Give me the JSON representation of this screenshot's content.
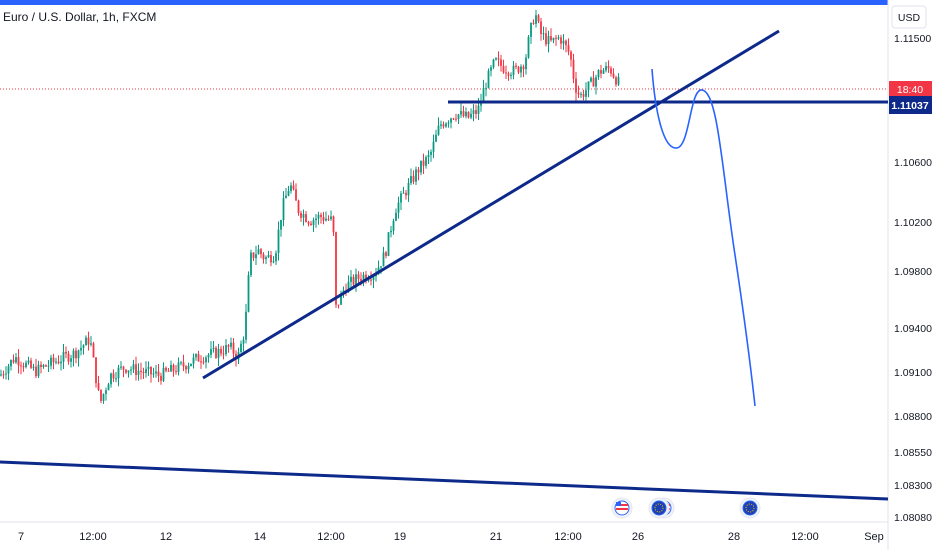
{
  "header": {
    "symbol_title": "Euro / U.S. Dollar, 1h, FXCM",
    "currency_badge": "USD"
  },
  "price_axis": {
    "ticks": [
      "1.11500",
      "1.10600",
      "1.10200",
      "1.09800",
      "1.09400",
      "1.09100",
      "1.08800",
      "1.08550",
      "1.08300",
      "1.08080"
    ],
    "countdown_label": "18:40",
    "current_price_label": "1.11037"
  },
  "time_axis": {
    "ticks": [
      "7",
      "12:00",
      "12",
      "14",
      "12:00",
      "19",
      "21",
      "12:00",
      "26",
      "28",
      "12:00",
      "Sep"
    ]
  },
  "colors": {
    "up_candle": "#089981",
    "down_candle": "#f23645",
    "trendline": "#0d2a8a",
    "price_tag": "#0d2a8a",
    "countdown_tag": "#f23645",
    "projection": "#2962ff",
    "top_border": "#2962ff"
  },
  "chart_data": {
    "type": "candlestick",
    "title": "Euro / U.S. Dollar, 1h, FXCM",
    "price_unit": "USD",
    "ylim": [
      1.0808,
      1.1175
    ],
    "last_price": 1.11037,
    "horizontal_level": 1.11037,
    "path_points": [
      [
        0,
        1.0912
      ],
      [
        15,
        1.0925
      ],
      [
        35,
        1.0915
      ],
      [
        55,
        1.0922
      ],
      [
        75,
        1.0928
      ],
      [
        90,
        1.0938
      ],
      [
        100,
        1.0892
      ],
      [
        110,
        1.0912
      ],
      [
        125,
        1.0918
      ],
      [
        140,
        1.0915
      ],
      [
        160,
        1.0912
      ],
      [
        180,
        1.0918
      ],
      [
        200,
        1.0925
      ],
      [
        215,
        1.0928
      ],
      [
        230,
        1.0932
      ],
      [
        238,
        1.0925
      ],
      [
        245,
        1.0945
      ],
      [
        250,
        1.0995
      ],
      [
        258,
        1.1001
      ],
      [
        265,
        1.0995
      ],
      [
        275,
        1.0998
      ],
      [
        282,
        1.103
      ],
      [
        290,
        1.1048
      ],
      [
        298,
        1.103
      ],
      [
        310,
        1.1022
      ],
      [
        320,
        1.1025
      ],
      [
        333,
        1.1022
      ],
      [
        336,
        1.096
      ],
      [
        345,
        1.0975
      ],
      [
        360,
        1.0982
      ],
      [
        375,
        1.0985
      ],
      [
        385,
        1.0998
      ],
      [
        395,
        1.103
      ],
      [
        405,
        1.1042
      ],
      [
        418,
        1.1058
      ],
      [
        430,
        1.1068
      ],
      [
        440,
        1.109
      ],
      [
        455,
        1.1098
      ],
      [
        468,
        1.1095
      ],
      [
        478,
        1.11
      ],
      [
        485,
        1.1118
      ],
      [
        495,
        1.1135
      ],
      [
        505,
        1.113
      ],
      [
        515,
        1.1128
      ],
      [
        525,
        1.1135
      ],
      [
        530,
        1.1155
      ],
      [
        535,
        1.117
      ],
      [
        540,
        1.1155
      ],
      [
        550,
        1.1148
      ],
      [
        560,
        1.1152
      ],
      [
        570,
        1.114
      ],
      [
        575,
        1.1118
      ],
      [
        580,
        1.111
      ],
      [
        590,
        1.1118
      ],
      [
        600,
        1.1128
      ],
      [
        610,
        1.113
      ],
      [
        620,
        1.1118
      ]
    ]
  }
}
